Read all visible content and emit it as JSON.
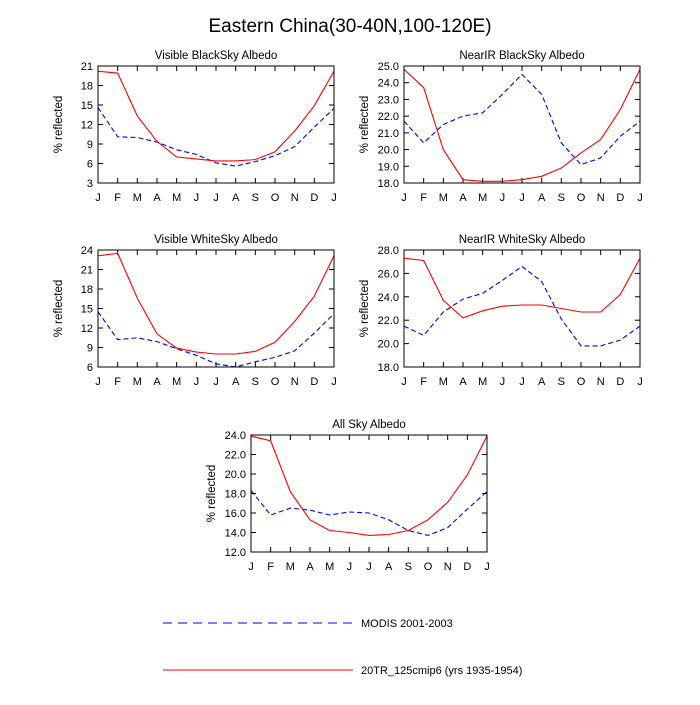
{
  "figure": {
    "title": "Eastern China(30-40N,100-120E)"
  },
  "series_style": {
    "modis": {
      "color": "#0000ff",
      "dash": "dashed"
    },
    "model": {
      "color": "#ff0000",
      "dash": "solid"
    }
  },
  "legend": {
    "placement": "bottom",
    "entries": [
      {
        "key": "modis",
        "label": "MODIS 2001-2003"
      },
      {
        "key": "model",
        "label": "20TR_125cmip6 (yrs 1935-1954)"
      }
    ]
  },
  "chart_data": [
    {
      "type": "line",
      "title": "Visible BlackSky Albedo",
      "ylabel": "% reflected",
      "categories": [
        "J",
        "F",
        "M",
        "A",
        "M",
        "J",
        "J",
        "A",
        "S",
        "O",
        "N",
        "D",
        "J"
      ],
      "ylim": [
        3,
        21
      ],
      "yticks": [
        "3",
        "6",
        "9",
        "12",
        "15",
        "18",
        "21"
      ],
      "series": [
        {
          "key": "modis",
          "values": [
            14.6,
            10.1,
            10.0,
            9.3,
            8.1,
            7.4,
            6.1,
            5.6,
            6.3,
            7.2,
            8.6,
            11.6,
            14.5
          ]
        },
        {
          "key": "model",
          "values": [
            20.2,
            19.9,
            13.3,
            9.4,
            7.0,
            6.7,
            6.4,
            6.4,
            6.6,
            7.8,
            11.0,
            14.9,
            20.2
          ]
        }
      ]
    },
    {
      "type": "line",
      "title": "NearIR BlackSky Albedo",
      "ylabel": "% reflected",
      "categories": [
        "J",
        "F",
        "M",
        "A",
        "M",
        "J",
        "J",
        "A",
        "S",
        "O",
        "N",
        "D",
        "J"
      ],
      "ylim": [
        18.0,
        25.0
      ],
      "yticks": [
        "18.0",
        "19.0",
        "20.0",
        "21.0",
        "22.0",
        "23.0",
        "24.0",
        "25.0"
      ],
      "series": [
        {
          "key": "modis",
          "values": [
            21.7,
            20.4,
            21.5,
            22.0,
            22.2,
            23.3,
            24.5,
            23.3,
            20.4,
            19.1,
            19.5,
            20.8,
            21.7
          ]
        },
        {
          "key": "model",
          "values": [
            24.8,
            23.7,
            20.0,
            18.2,
            18.1,
            18.1,
            18.2,
            18.4,
            18.9,
            19.8,
            20.6,
            22.4,
            24.8
          ]
        }
      ]
    },
    {
      "type": "line",
      "title": "Visible WhiteSky Albedo",
      "ylabel": "% reflected",
      "categories": [
        "J",
        "F",
        "M",
        "A",
        "M",
        "J",
        "J",
        "A",
        "S",
        "O",
        "N",
        "D",
        "J"
      ],
      "ylim": [
        6,
        24
      ],
      "yticks": [
        "6",
        "9",
        "12",
        "15",
        "18",
        "21",
        "24"
      ],
      "series": [
        {
          "key": "modis",
          "values": [
            14.5,
            10.2,
            10.5,
            9.9,
            8.8,
            7.8,
            6.5,
            6.0,
            6.8,
            7.5,
            8.5,
            11.2,
            14.2
          ]
        },
        {
          "key": "model",
          "values": [
            23.1,
            23.5,
            16.6,
            11.1,
            8.9,
            8.3,
            8.0,
            8.0,
            8.4,
            9.8,
            13.0,
            16.9,
            23.1
          ]
        }
      ]
    },
    {
      "type": "line",
      "title": "NearIR WhiteSky Albedo",
      "ylabel": "% reflected",
      "categories": [
        "J",
        "F",
        "M",
        "A",
        "M",
        "J",
        "J",
        "A",
        "S",
        "O",
        "N",
        "D",
        "J"
      ],
      "ylim": [
        18.0,
        28.0
      ],
      "yticks": [
        "18.0",
        "20.0",
        "22.0",
        "24.0",
        "26.0",
        "28.0"
      ],
      "series": [
        {
          "key": "modis",
          "values": [
            21.5,
            20.7,
            22.7,
            23.8,
            24.3,
            25.4,
            26.6,
            25.3,
            22.1,
            19.8,
            19.8,
            20.3,
            21.5
          ]
        },
        {
          "key": "model",
          "values": [
            27.3,
            27.1,
            23.7,
            22.2,
            22.8,
            23.2,
            23.3,
            23.3,
            23.0,
            22.7,
            22.7,
            24.2,
            27.3
          ]
        }
      ]
    },
    {
      "type": "line",
      "title": "All Sky Albedo",
      "ylabel": "% reflected",
      "categories": [
        "J",
        "F",
        "M",
        "A",
        "M",
        "J",
        "J",
        "A",
        "S",
        "O",
        "N",
        "D",
        "J"
      ],
      "ylim": [
        12.0,
        24.0
      ],
      "yticks": [
        "12.0",
        "14.0",
        "16.0",
        "18.0",
        "20.0",
        "22.0",
        "24.0"
      ],
      "series": [
        {
          "key": "modis",
          "values": [
            18.3,
            15.8,
            16.5,
            16.3,
            15.8,
            16.1,
            16.0,
            15.3,
            14.2,
            13.7,
            14.5,
            16.4,
            18.2
          ]
        },
        {
          "key": "model",
          "values": [
            23.9,
            23.4,
            18.2,
            15.3,
            14.2,
            14.0,
            13.7,
            13.8,
            14.2,
            15.3,
            17.1,
            19.9,
            23.9
          ]
        }
      ]
    }
  ]
}
